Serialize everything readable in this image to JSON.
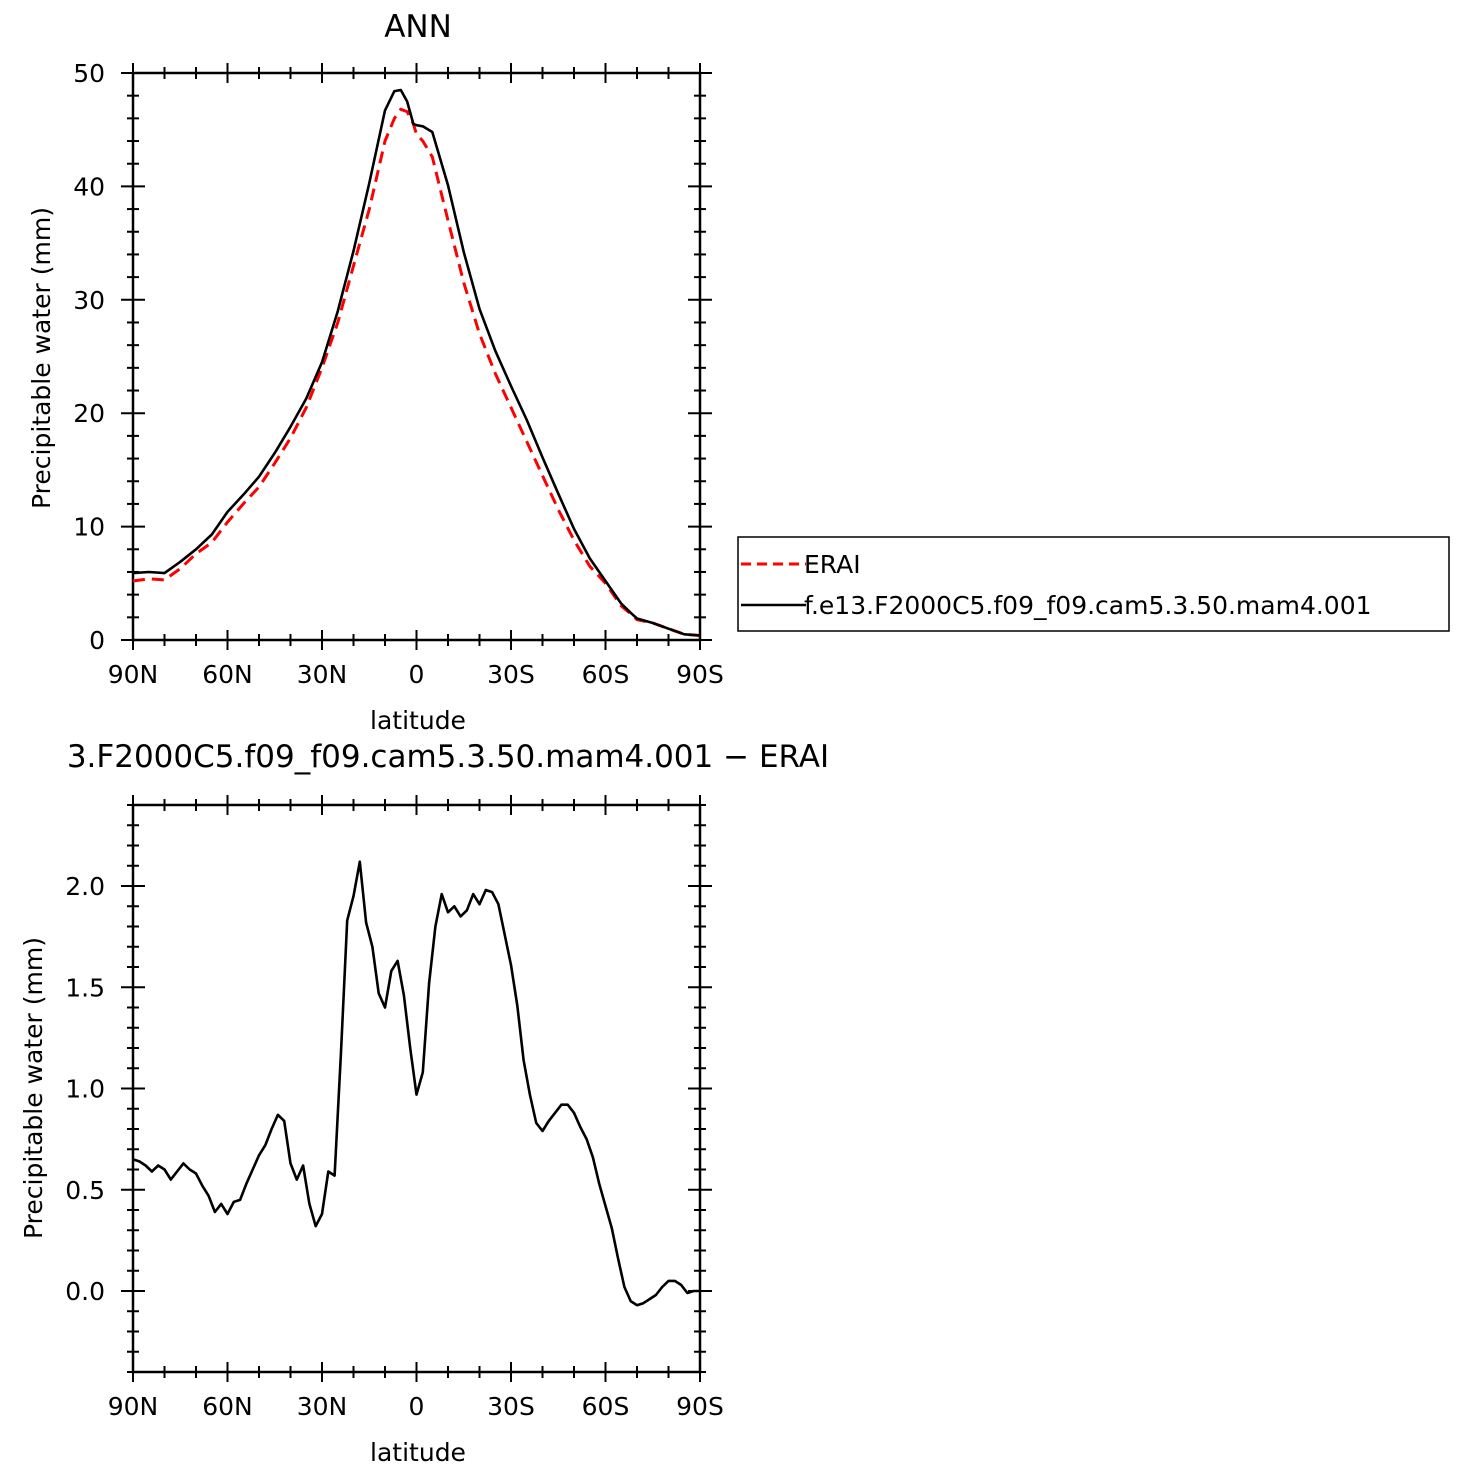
{
  "colors": {
    "erai": "#ff0000",
    "model": "#000000",
    "frame": "#000000"
  },
  "chart_data": [
    {
      "type": "line",
      "title": "ANN",
      "xlabel": "latitude",
      "ylabel": "Precipitable water (mm)",
      "xlim": [
        90,
        -90
      ],
      "ylim": [
        0,
        50
      ],
      "x_ticks": [
        {
          "value": 90,
          "label": "90N"
        },
        {
          "value": 60,
          "label": "60N"
        },
        {
          "value": 30,
          "label": "30N"
        },
        {
          "value": 0,
          "label": "0"
        },
        {
          "value": -30,
          "label": "30S"
        },
        {
          "value": -60,
          "label": "60S"
        },
        {
          "value": -90,
          "label": "90S"
        }
      ],
      "y_ticks": [
        {
          "value": 0,
          "label": "0"
        },
        {
          "value": 10,
          "label": "10"
        },
        {
          "value": 20,
          "label": "20"
        },
        {
          "value": 30,
          "label": "30"
        },
        {
          "value": 40,
          "label": "40"
        },
        {
          "value": 50,
          "label": "50"
        }
      ],
      "legend": "right",
      "series": [
        {
          "name": "ERAI",
          "style": "dashed",
          "color": "#ff0000",
          "x": [
            90,
            85,
            80,
            75,
            70,
            65,
            60,
            55,
            50,
            45,
            40,
            35,
            30,
            25,
            20,
            15,
            10,
            7,
            5,
            3,
            1,
            0,
            -2,
            -5,
            -10,
            -15,
            -20,
            -25,
            -30,
            -35,
            -40,
            -45,
            -50,
            -55,
            -60,
            -65,
            -68,
            -70,
            -75,
            -80,
            -85,
            -90
          ],
          "y": [
            5.2,
            5.4,
            5.3,
            6.3,
            7.6,
            8.6,
            10.4,
            12.0,
            13.5,
            15.6,
            17.8,
            20.5,
            24.0,
            28.0,
            33.0,
            38.0,
            44.0,
            46.0,
            46.8,
            46.6,
            45.5,
            44.6,
            44.0,
            42.6,
            37.0,
            31.5,
            27.0,
            23.5,
            20.5,
            17.5,
            14.5,
            11.5,
            8.8,
            6.5,
            5.0,
            3.0,
            2.3,
            1.8,
            1.5,
            1.0,
            0.5,
            0.4
          ]
        },
        {
          "name": "f.e13.F2000C5.f09_f09.cam5.3.50.mam4.001",
          "style": "solid",
          "color": "#000000",
          "x": [
            90,
            85,
            80,
            75,
            70,
            65,
            60,
            55,
            50,
            45,
            40,
            35,
            30,
            25,
            20,
            15,
            10,
            7,
            5,
            3,
            1,
            0,
            -2,
            -5,
            -10,
            -15,
            -20,
            -25,
            -30,
            -35,
            -40,
            -45,
            -50,
            -55,
            -60,
            -65,
            -68,
            -70,
            -75,
            -80,
            -85,
            -90
          ],
          "y": [
            5.9,
            6.0,
            5.9,
            6.9,
            8.0,
            9.3,
            11.3,
            12.8,
            14.4,
            16.5,
            18.8,
            21.3,
            24.5,
            29.0,
            34.3,
            40.3,
            46.7,
            48.4,
            48.5,
            47.5,
            45.5,
            45.4,
            45.3,
            44.8,
            40.1,
            34.2,
            29.2,
            25.5,
            22.4,
            19.4,
            16.1,
            12.9,
            9.8,
            7.2,
            5.2,
            3.2,
            2.4,
            1.9,
            1.5,
            1.0,
            0.5,
            0.4
          ]
        }
      ]
    },
    {
      "type": "line",
      "title": "3.F2000C5.f09_f09.cam5.3.50.mam4.001 − ERAI",
      "xlabel": "latitude",
      "ylabel": "Precipitable water (mm)",
      "xlim": [
        90,
        -90
      ],
      "ylim": [
        -0.4,
        2.4
      ],
      "x_ticks": [
        {
          "value": 90,
          "label": "90N"
        },
        {
          "value": 60,
          "label": "60N"
        },
        {
          "value": 30,
          "label": "30N"
        },
        {
          "value": 0,
          "label": "0"
        },
        {
          "value": -30,
          "label": "30S"
        },
        {
          "value": -60,
          "label": "60S"
        },
        {
          "value": -90,
          "label": "90S"
        }
      ],
      "y_ticks": [
        {
          "value": 0,
          "label": "0.0"
        },
        {
          "value": 0.5,
          "label": "0.5"
        },
        {
          "value": 1,
          "label": "1.0"
        },
        {
          "value": 1.5,
          "label": "1.5"
        },
        {
          "value": 2,
          "label": "2.0"
        }
      ],
      "series": [
        {
          "style": "solid",
          "color": "#000000",
          "x": [
            90,
            88,
            86,
            84,
            82,
            80,
            78,
            76,
            74,
            72,
            70,
            68,
            66,
            64,
            62,
            60,
            58,
            56,
            54,
            52,
            50,
            48,
            46,
            44,
            42,
            40,
            38,
            36,
            34,
            32,
            30,
            28,
            26,
            24,
            22,
            20,
            18,
            16,
            14,
            12,
            10,
            8,
            6,
            4,
            2,
            0,
            -2,
            -4,
            -6,
            -8,
            -10,
            -12,
            -14,
            -16,
            -18,
            -20,
            -22,
            -24,
            -26,
            -28,
            -30,
            -32,
            -34,
            -36,
            -38,
            -40,
            -42,
            -44,
            -46,
            -48,
            -50,
            -52,
            -54,
            -56,
            -58,
            -60,
            -62,
            -64,
            -66,
            -68,
            -70,
            -72,
            -74,
            -76,
            -78,
            -80,
            -82,
            -84,
            -86,
            -88,
            -90
          ],
          "y": [
            0.65,
            0.64,
            0.62,
            0.59,
            0.62,
            0.6,
            0.55,
            0.59,
            0.63,
            0.6,
            0.58,
            0.52,
            0.47,
            0.39,
            0.43,
            0.38,
            0.44,
            0.45,
            0.53,
            0.6,
            0.67,
            0.72,
            0.8,
            0.87,
            0.84,
            0.63,
            0.55,
            0.62,
            0.43,
            0.32,
            0.38,
            0.59,
            0.57,
            1.17,
            1.83,
            1.95,
            2.12,
            1.82,
            1.7,
            1.47,
            1.4,
            1.58,
            1.63,
            1.46,
            1.2,
            0.97,
            1.08,
            1.52,
            1.8,
            1.96,
            1.87,
            1.9,
            1.85,
            1.88,
            1.96,
            1.91,
            1.98,
            1.97,
            1.91,
            1.76,
            1.61,
            1.41,
            1.14,
            0.97,
            0.83,
            0.79,
            0.84,
            0.88,
            0.92,
            0.92,
            0.88,
            0.81,
            0.75,
            0.66,
            0.53,
            0.42,
            0.31,
            0.16,
            0.02,
            -0.05,
            -0.07,
            -0.06,
            -0.04,
            -0.02,
            0.02,
            0.05,
            0.05,
            0.03,
            -0.01,
            0.0,
            0.0
          ]
        }
      ]
    }
  ]
}
